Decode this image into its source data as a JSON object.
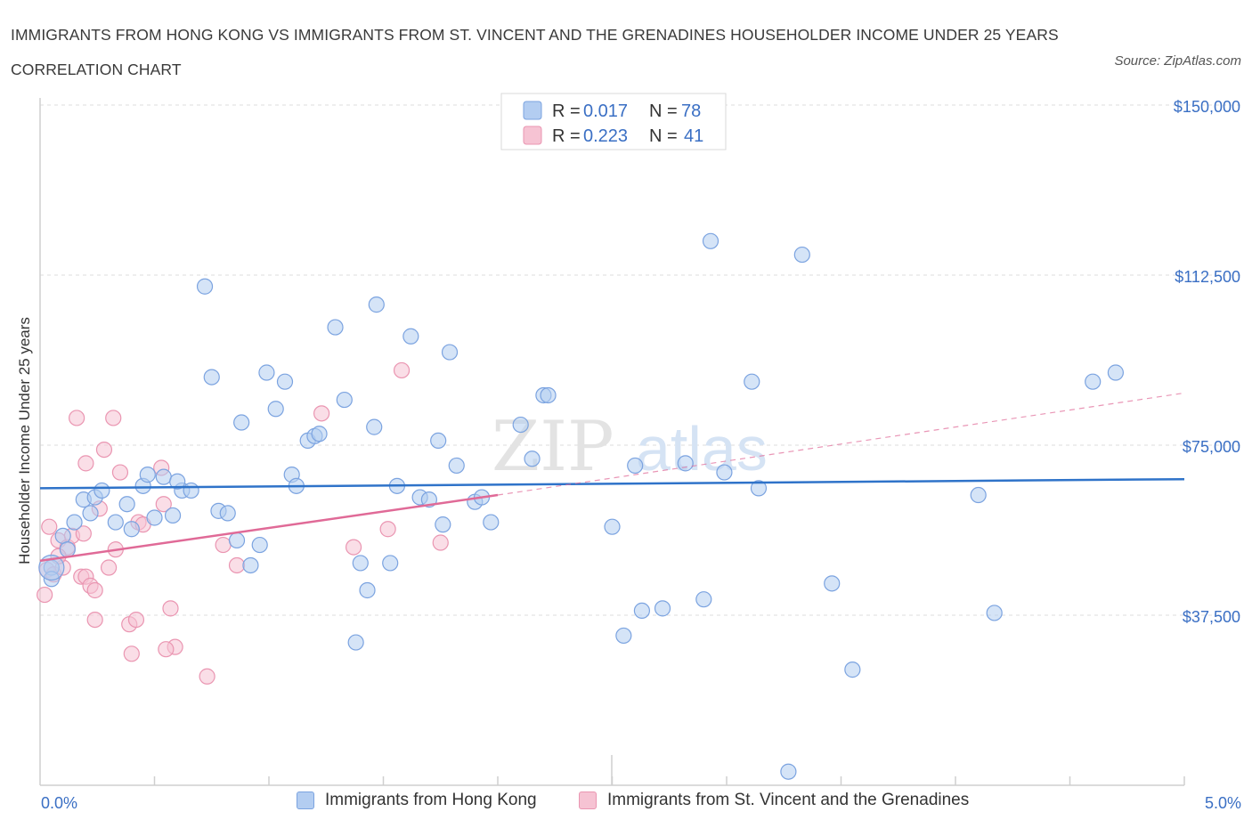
{
  "title": "IMMIGRANTS FROM HONG KONG VS IMMIGRANTS FROM ST. VINCENT AND THE GRENADINES HOUSEHOLDER INCOME UNDER 25 YEARS CORRELATION CHART",
  "source": "Source: ZipAtlas.com",
  "watermark": {
    "zip": "ZIP",
    "atlas": "atlas"
  },
  "legend_stats": [
    {
      "r_label": "R =",
      "r_value": "0.017",
      "n_label": "N =",
      "n_value": "78",
      "color": "#a9c6ee"
    },
    {
      "r_label": "R =",
      "r_value": "0.223",
      "n_label": "N =",
      "n_value": "41",
      "color": "#f4b6c9"
    }
  ],
  "colors": {
    "blue_fill": "#b3cdf1",
    "blue_stroke": "#7ba3e0",
    "blue_line": "#2f73c9",
    "pink_fill": "#f6c3d3",
    "pink_stroke": "#ea95b1",
    "pink_line": "#e06a97",
    "axis_text": "#3a6fc4",
    "grid": "#dcdcdc"
  },
  "chart_data": {
    "type": "scatter",
    "title": "IMMIGRANTS FROM HONG KONG VS IMMIGRANTS FROM ST. VINCENT AND THE GRENADINES HOUSEHOLDER INCOME UNDER 25 YEARS CORRELATION CHART",
    "xlabel": "",
    "ylabel": "Householder Income Under 25 years",
    "xlim": [
      0,
      5
    ],
    "ylim": [
      0,
      150000
    ],
    "x_tick_labels": [
      "0.0%",
      "5.0%"
    ],
    "y_ticks": [
      37500,
      75000,
      112500,
      150000
    ],
    "y_tick_labels": [
      "$37,500",
      "$75,000",
      "$112,500",
      "$150,000"
    ],
    "grid": "horizontal dashed",
    "legend_position": "top-center",
    "series": [
      {
        "name": "Immigrants from Hong Kong",
        "color": "#b3cdf1",
        "trend": {
          "x": [
            0,
            5
          ],
          "y": [
            65500,
            67500
          ],
          "style": "solid"
        },
        "points": [
          [
            0.05,
            48000
          ],
          [
            0.05,
            45500
          ],
          [
            0.1,
            55000
          ],
          [
            0.12,
            52000
          ],
          [
            0.15,
            58000
          ],
          [
            0.19,
            63000
          ],
          [
            0.22,
            60000
          ],
          [
            0.24,
            63500
          ],
          [
            0.27,
            65000
          ],
          [
            0.33,
            58000
          ],
          [
            0.38,
            62000
          ],
          [
            0.4,
            56500
          ],
          [
            0.45,
            66000
          ],
          [
            0.47,
            68500
          ],
          [
            0.5,
            59000
          ],
          [
            0.54,
            68000
          ],
          [
            0.58,
            59500
          ],
          [
            0.62,
            65000
          ],
          [
            0.66,
            65000
          ],
          [
            0.72,
            110000
          ],
          [
            0.75,
            90000
          ],
          [
            0.78,
            60500
          ],
          [
            0.82,
            60000
          ],
          [
            0.86,
            54000
          ],
          [
            0.88,
            80000
          ],
          [
            0.92,
            48500
          ],
          [
            0.96,
            53000
          ],
          [
            0.99,
            91000
          ],
          [
            1.03,
            83000
          ],
          [
            1.07,
            89000
          ],
          [
            1.1,
            68500
          ],
          [
            1.12,
            66000
          ],
          [
            1.17,
            76000
          ],
          [
            1.2,
            77000
          ],
          [
            1.22,
            77500
          ],
          [
            1.29,
            101000
          ],
          [
            1.33,
            85000
          ],
          [
            1.38,
            31500
          ],
          [
            1.4,
            49000
          ],
          [
            1.43,
            43000
          ],
          [
            1.46,
            79000
          ],
          [
            1.47,
            106000
          ],
          [
            1.53,
            49000
          ],
          [
            1.56,
            66000
          ],
          [
            1.62,
            99000
          ],
          [
            1.66,
            63500
          ],
          [
            1.7,
            63000
          ],
          [
            1.74,
            76000
          ],
          [
            1.76,
            57500
          ],
          [
            1.79,
            95500
          ],
          [
            1.82,
            70500
          ],
          [
            1.9,
            62500
          ],
          [
            1.93,
            63500
          ],
          [
            1.97,
            58000
          ],
          [
            2.1,
            79500
          ],
          [
            2.15,
            72000
          ],
          [
            2.2,
            86000
          ],
          [
            2.22,
            86000
          ],
          [
            2.5,
            57000
          ],
          [
            2.55,
            33000
          ],
          [
            2.6,
            70500
          ],
          [
            2.63,
            38500
          ],
          [
            2.72,
            39000
          ],
          [
            2.82,
            71000
          ],
          [
            2.9,
            41000
          ],
          [
            2.93,
            120000
          ],
          [
            2.99,
            69000
          ],
          [
            3.11,
            89000
          ],
          [
            3.14,
            65500
          ],
          [
            3.27,
            3000
          ],
          [
            3.33,
            117000
          ],
          [
            3.46,
            44500
          ],
          [
            3.55,
            25500
          ],
          [
            4.1,
            64000
          ],
          [
            4.17,
            38000
          ],
          [
            4.6,
            89000
          ],
          [
            4.7,
            91000
          ],
          [
            0.6,
            67000
          ]
        ]
      },
      {
        "name": "Immigrants from St. Vincent and the Grenadines",
        "color": "#f6c3d3",
        "trend": {
          "x": [
            0,
            2
          ],
          "y": [
            49500,
            64000
          ],
          "style": "solid",
          "extended": {
            "x": [
              2,
              5
            ],
            "y": [
              64000,
              86500
            ],
            "style": "dashed"
          }
        },
        "points": [
          [
            0.02,
            42000
          ],
          [
            0.03,
            47500
          ],
          [
            0.04,
            57000
          ],
          [
            0.06,
            46500
          ],
          [
            0.08,
            54000
          ],
          [
            0.1,
            48000
          ],
          [
            0.12,
            52500
          ],
          [
            0.14,
            55000
          ],
          [
            0.16,
            81000
          ],
          [
            0.18,
            46000
          ],
          [
            0.19,
            55500
          ],
          [
            0.2,
            46000
          ],
          [
            0.22,
            44000
          ],
          [
            0.2,
            71000
          ],
          [
            0.24,
            43000
          ],
          [
            0.24,
            36500
          ],
          [
            0.26,
            61000
          ],
          [
            0.28,
            74000
          ],
          [
            0.3,
            48000
          ],
          [
            0.32,
            81000
          ],
          [
            0.33,
            52000
          ],
          [
            0.35,
            69000
          ],
          [
            0.39,
            35500
          ],
          [
            0.4,
            29000
          ],
          [
            0.42,
            36500
          ],
          [
            0.43,
            58000
          ],
          [
            0.45,
            57500
          ],
          [
            0.53,
            70000
          ],
          [
            0.54,
            62000
          ],
          [
            0.57,
            39000
          ],
          [
            0.59,
            30500
          ],
          [
            0.73,
            24000
          ],
          [
            0.8,
            53000
          ],
          [
            0.86,
            48500
          ],
          [
            1.23,
            82000
          ],
          [
            1.37,
            52500
          ],
          [
            1.52,
            56500
          ],
          [
            1.58,
            91500
          ],
          [
            1.75,
            53500
          ],
          [
            0.55,
            30000
          ],
          [
            0.08,
            50500
          ]
        ]
      }
    ]
  }
}
